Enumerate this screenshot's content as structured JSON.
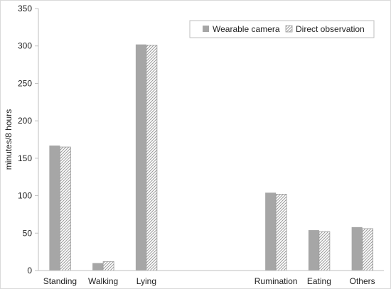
{
  "chart_data": {
    "type": "bar",
    "categories": [
      "Standing",
      "Walking",
      "Lying",
      "",
      "",
      "Rumination",
      "Eating",
      "Others"
    ],
    "series": [
      {
        "name": "Wearable camera",
        "values": [
          167,
          10,
          302,
          null,
          null,
          104,
          54,
          58
        ],
        "color": "#a6a6a6",
        "pattern": "solid"
      },
      {
        "name": "Direct observation",
        "values": [
          165,
          12,
          301,
          null,
          null,
          102,
          52,
          56
        ],
        "color": "#a6a6a6",
        "pattern": "diagonal-hatch"
      }
    ],
    "title": "",
    "xlabel": "",
    "ylabel": "minutes/8 hours",
    "ylim": [
      0,
      350
    ],
    "yticks": [
      0,
      50,
      100,
      150,
      200,
      250,
      300,
      350
    ],
    "grid": false,
    "legend_position": "top-right"
  }
}
